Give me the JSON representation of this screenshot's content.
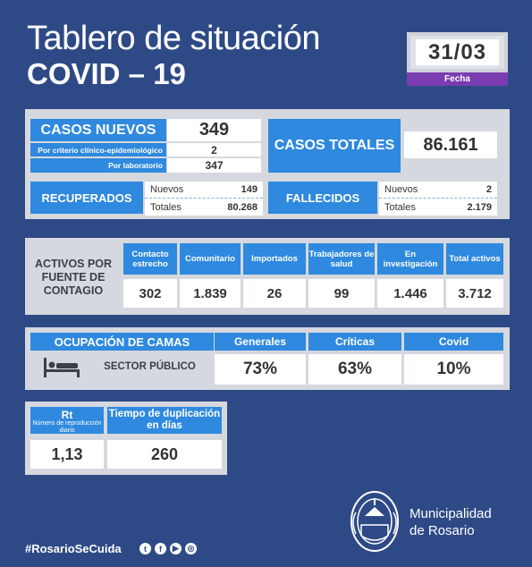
{
  "header": {
    "title": "Tablero de situación",
    "subtitle": "COVID – 19",
    "date": "31/03",
    "date_label": "Fecha"
  },
  "casos_nuevos": {
    "label": "CASOS NUEVOS",
    "value": "349",
    "sub1_label": "Por criterio clínico-epidemiológico",
    "sub1_value": "2",
    "sub2_label": "Por laboratorio",
    "sub2_value": "347"
  },
  "casos_totales": {
    "label": "CASOS TOTALES",
    "value": "86.161"
  },
  "recuperados": {
    "label": "RECUPERADOS",
    "nuevos_label": "Nuevos",
    "nuevos_value": "149",
    "totales_label": "Totales",
    "totales_value": "80.268"
  },
  "fallecidos": {
    "label": "FALLECIDOS",
    "nuevos_label": "Nuevos",
    "nuevos_value": "2",
    "totales_label": "Totales",
    "totales_value": "2.179"
  },
  "activos": {
    "label": "ACTIVOS POR FUENTE DE CONTAGIO",
    "columns": [
      {
        "label": "Contacto estrecho",
        "value": "302"
      },
      {
        "label": "Comunitario",
        "value": "1.839"
      },
      {
        "label": "Importados",
        "value": "26"
      },
      {
        "label": "Trabajadores de salud",
        "value": "99"
      },
      {
        "label": "En investigación",
        "value": "1.446"
      },
      {
        "label": "Total activos",
        "value": "3.712"
      }
    ]
  },
  "camas": {
    "label": "OCUPACIÓN DE CAMAS",
    "sector": "SECTOR PÚBLICO",
    "columns": [
      {
        "label": "Generales",
        "value": "73%"
      },
      {
        "label": "Críticas",
        "value": "63%"
      },
      {
        "label": "Covid",
        "value": "10%"
      }
    ]
  },
  "rt": {
    "label": "Rt",
    "sublabel": "Número de reproducción diario",
    "value": "1,13"
  },
  "duplicacion": {
    "label": "Tiempo de duplicación en días",
    "value": "260"
  },
  "footer": {
    "hashtag": "#RosarioSeCuida",
    "org_line1": "Municipalidad",
    "org_line2": "de Rosario",
    "social_icons": [
      "twitter-icon",
      "facebook-icon",
      "youtube-icon",
      "instagram-icon"
    ]
  },
  "colors": {
    "background": "#2e4a86",
    "accent_blue": "#2f89de",
    "panel": "#d6d8df",
    "date_label": "#7a3cb0"
  }
}
